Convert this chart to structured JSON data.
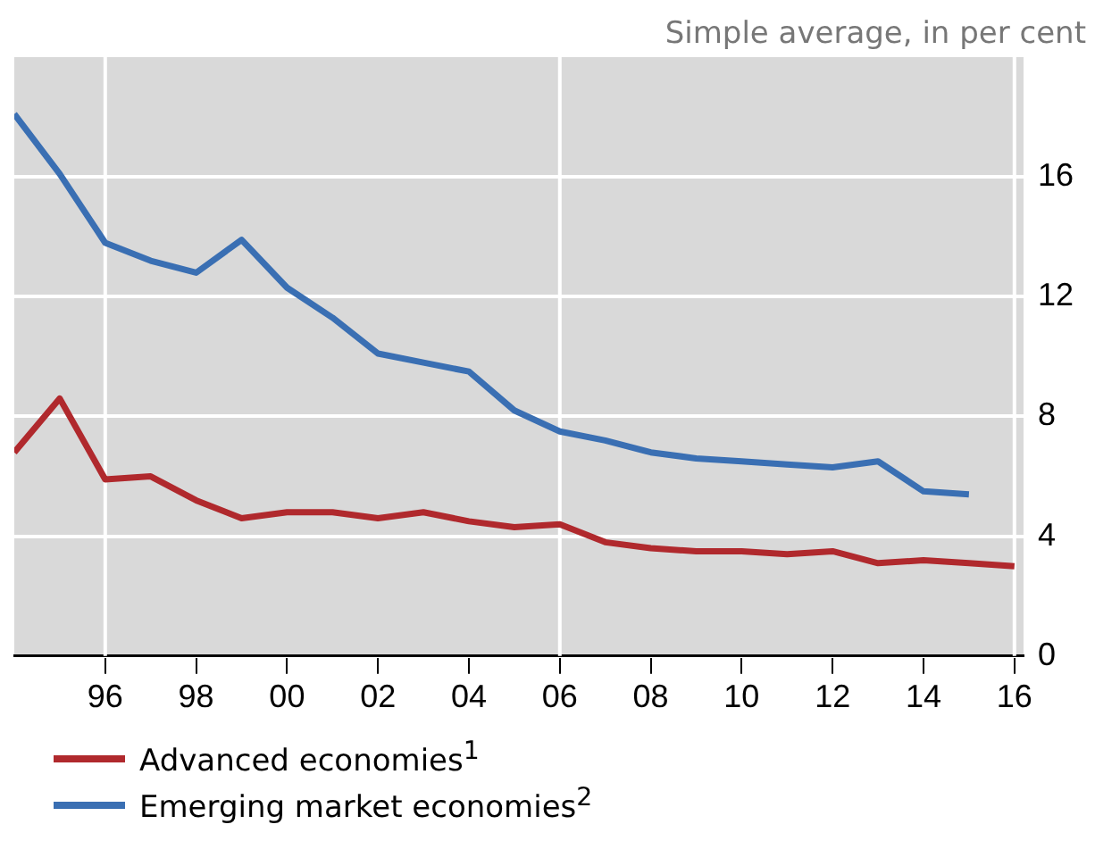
{
  "chart_data": {
    "type": "line",
    "ylabel": "Simple average, in per cent",
    "x": [
      1994,
      1995,
      1996,
      1997,
      1998,
      1999,
      2000,
      2001,
      2002,
      2003,
      2004,
      2005,
      2006,
      2007,
      2008,
      2009,
      2010,
      2011,
      2012,
      2013,
      2014,
      2015,
      2016
    ],
    "series": [
      {
        "name": "Advanced economies$^{1}$",
        "color": "#b0292d",
        "values": [
          6.8,
          8.6,
          5.9,
          6.0,
          5.2,
          4.6,
          4.8,
          4.8,
          4.6,
          4.8,
          4.5,
          4.3,
          4.4,
          3.8,
          3.6,
          3.5,
          3.5,
          3.4,
          3.5,
          3.1,
          3.2,
          3.1,
          3.0
        ]
      },
      {
        "name": "Emerging market economies$^{2}$",
        "color": "#3a6fb3",
        "values": [
          18.1,
          16.1,
          13.8,
          13.2,
          12.8,
          13.9,
          12.3,
          11.3,
          10.1,
          9.8,
          9.5,
          8.2,
          7.5,
          7.2,
          6.8,
          6.6,
          6.5,
          6.4,
          6.3,
          6.5,
          5.5,
          5.4,
          null
        ]
      }
    ],
    "xlim": [
      1994,
      2016.2
    ],
    "xticks": [
      {
        "value": 1996,
        "label": "96"
      },
      {
        "value": 1998,
        "label": "98"
      },
      {
        "value": 2000,
        "label": "00"
      },
      {
        "value": 2002,
        "label": "02"
      },
      {
        "value": 2004,
        "label": "04"
      },
      {
        "value": 2006,
        "label": "06"
      },
      {
        "value": 2008,
        "label": "08"
      },
      {
        "value": 2010,
        "label": "10"
      },
      {
        "value": 2012,
        "label": "12"
      },
      {
        "value": 2014,
        "label": "14"
      },
      {
        "value": 2016,
        "label": "16"
      }
    ],
    "ylim": [
      0,
      20
    ],
    "yticks": [
      0,
      4,
      8,
      12,
      16
    ],
    "ref_lines": [
      {
        "axis": "x",
        "value": 1996,
        "color": "#ffffff"
      },
      {
        "axis": "x",
        "value": 2006,
        "color": "#ffffff"
      },
      {
        "axis": "x",
        "value": 2016,
        "color": "#ffffff"
      }
    ],
    "grid": "y",
    "legend": "bottom",
    "marker": "none",
    "line_style": "solid"
  }
}
